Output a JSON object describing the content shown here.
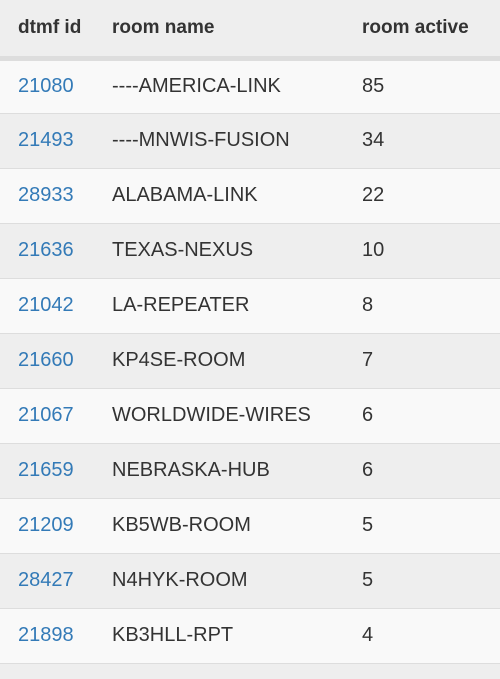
{
  "table": {
    "headers": {
      "dtmf_id": "dtmf id",
      "room_name": "room name",
      "room_active": "room active"
    },
    "rows": [
      {
        "dtmf_id": "21080",
        "room_name": "----AMERICA-LINK",
        "room_active": "85"
      },
      {
        "dtmf_id": "21493",
        "room_name": "----MNWIS-FUSION",
        "room_active": "34"
      },
      {
        "dtmf_id": "28933",
        "room_name": "ALABAMA-LINK",
        "room_active": "22"
      },
      {
        "dtmf_id": "21636",
        "room_name": "TEXAS-NEXUS",
        "room_active": "10"
      },
      {
        "dtmf_id": "21042",
        "room_name": "LA-REPEATER",
        "room_active": "8"
      },
      {
        "dtmf_id": "21660",
        "room_name": "KP4SE-ROOM",
        "room_active": "7"
      },
      {
        "dtmf_id": "21067",
        "room_name": "WORLDWIDE-WIRES",
        "room_active": "6"
      },
      {
        "dtmf_id": "21659",
        "room_name": "NEBRASKA-HUB",
        "room_active": "6"
      },
      {
        "dtmf_id": "21209",
        "room_name": "KB5WB-ROOM",
        "room_active": "5"
      },
      {
        "dtmf_id": "28427",
        "room_name": "N4HYK-ROOM",
        "room_active": "5"
      },
      {
        "dtmf_id": "21898",
        "room_name": "KB3HLL-RPT",
        "room_active": "4"
      }
    ]
  },
  "colors": {
    "link": "#337ab7",
    "text": "#333333",
    "row_odd": "#f9f9f9",
    "row_even": "#eeeeee",
    "border": "#dddddd"
  }
}
